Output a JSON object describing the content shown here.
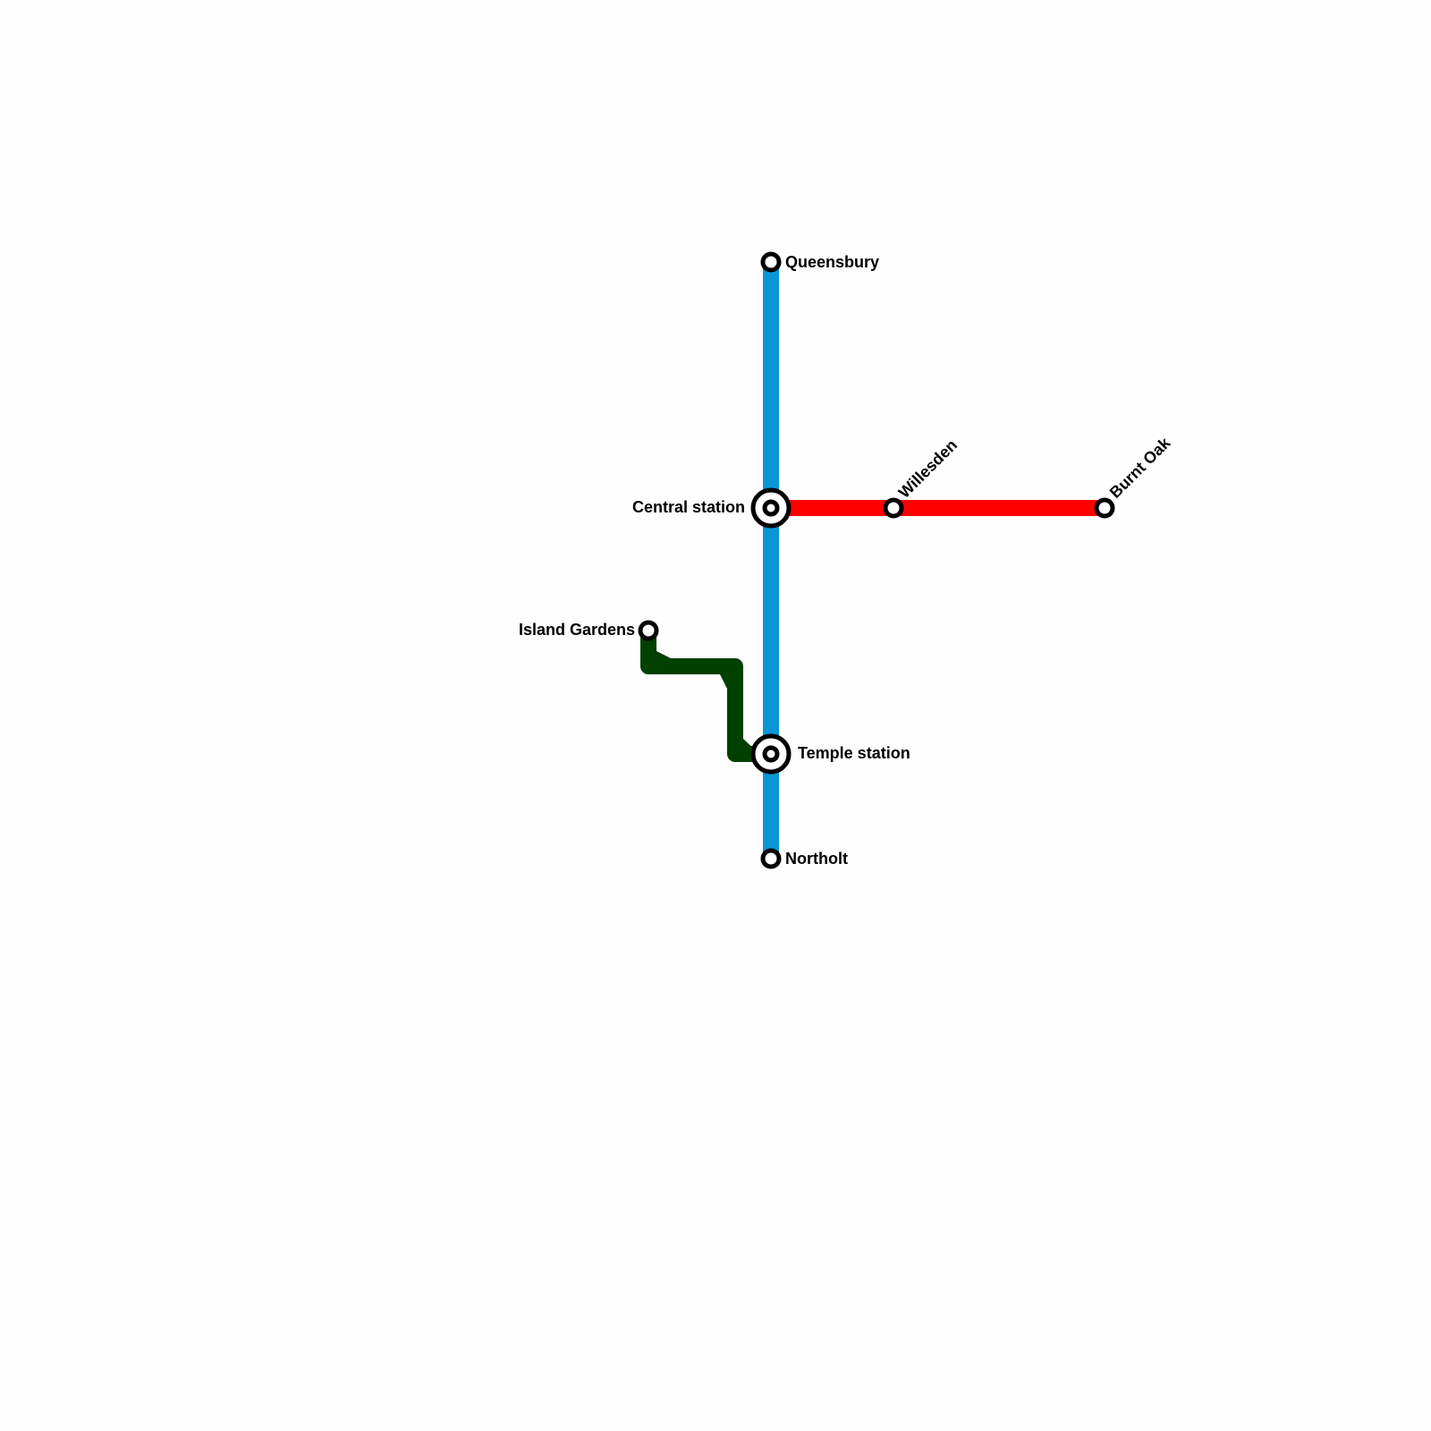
{
  "lines": [
    {
      "name": "blue-line",
      "color": "#0896d7"
    },
    {
      "name": "red-line",
      "color": "#ff0000"
    },
    {
      "name": "green-line",
      "color": "#004000"
    }
  ],
  "stations": {
    "queensbury": "Queensbury",
    "central": "Central station",
    "willesden": "Willesden",
    "burnt_oak": "Burnt Oak",
    "island_gardens": "Island Gardens",
    "temple": "Temple station",
    "northolt": "Northolt"
  }
}
